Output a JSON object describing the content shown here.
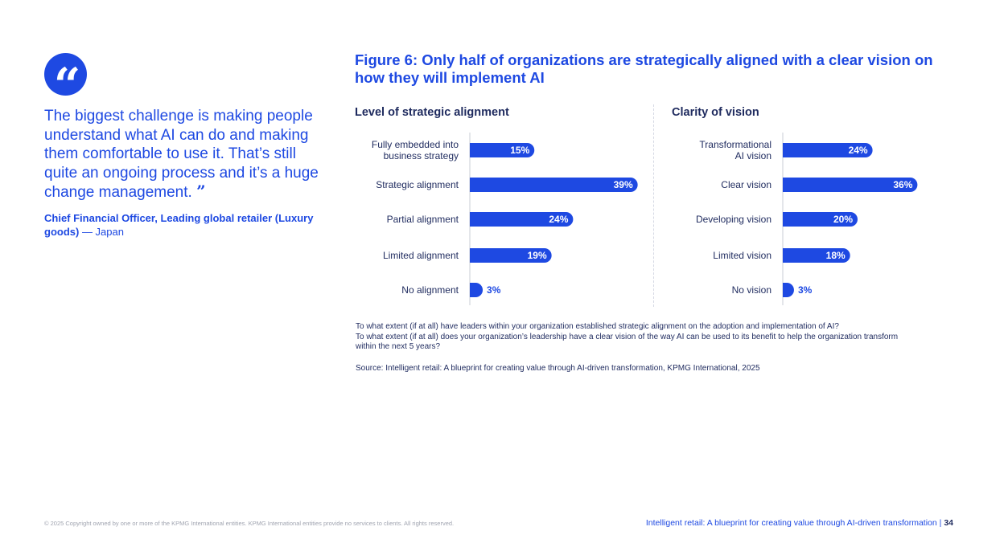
{
  "quote": {
    "text": "The biggest challenge is making people understand what AI can do and making them comfortable to use it. That’s still quite an ongoing process and it’s a huge change management.",
    "attribution_bold": "Chief Financial Officer, Leading global retailer (Luxury goods)",
    "attribution_rest": " — Japan"
  },
  "figure_title": "Figure 6: Only half of organizations are strategically aligned with a clear vision on how they will implement AI",
  "questions": [
    "To what extent (if at all) have leaders within your organization established strategic alignment on the adoption and implementation of AI?",
    "To what extent (if at all) does your organization’s leadership have a clear vision of the way AI can be used to its benefit to help the organization transform within the next 5 years?"
  ],
  "source": "Source: Intelligent retail: A blueprint for creating value through AI-driven transformation, KPMG International, 2025",
  "footer": {
    "copyright": "© 2025 Copyright owned by one or more of the KPMG International entities. KPMG International entities provide no services to clients. All rights reserved.",
    "report_title": "Intelligent retail: A blueprint for creating value through AI-driven transformation",
    "separator": "|",
    "page_number": "34"
  },
  "colors": {
    "brand_blue": "#1e49e2",
    "dark_navy": "#1e2a5e"
  },
  "chart_data": [
    {
      "type": "bar",
      "orientation": "horizontal",
      "title": "Level of strategic alignment",
      "categories": [
        "Fully embedded into business strategy",
        "Strategic alignment",
        "Partial alignment",
        "Limited alignment",
        "No alignment"
      ],
      "category_lines": [
        [
          "Fully embedded into",
          "business strategy"
        ],
        [
          "Strategic alignment"
        ],
        [
          "Partial alignment"
        ],
        [
          "Limited alignment"
        ],
        [
          "No alignment"
        ]
      ],
      "values": [
        15,
        39,
        24,
        19,
        3
      ],
      "labels": [
        "15%",
        "39%",
        "24%",
        "19%",
        "3%"
      ],
      "unit": "%"
    },
    {
      "type": "bar",
      "orientation": "horizontal",
      "title": "Clarity of vision",
      "categories": [
        "Transformational AI vision",
        "Clear vision",
        "Developing vision",
        "Limited vision",
        "No vision"
      ],
      "category_lines": [
        [
          "Transformational",
          "AI vision"
        ],
        [
          "Clear vision"
        ],
        [
          "Developing vision"
        ],
        [
          "Limited vision"
        ],
        [
          "No vision"
        ]
      ],
      "values": [
        24,
        36,
        20,
        18,
        3
      ],
      "labels": [
        "24%",
        "36%",
        "20%",
        "18%",
        "3%"
      ],
      "unit": "%"
    }
  ]
}
